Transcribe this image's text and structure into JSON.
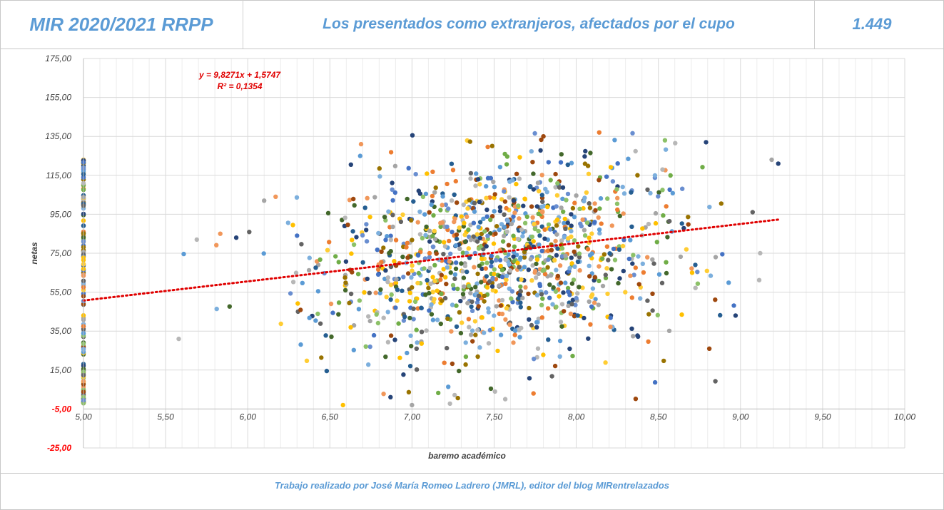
{
  "header": {
    "left_title": "MIR 2020/2021 RRPP",
    "center_title": "Los presentados como extranjeros, afectados por el cupo",
    "right_value": "1.449"
  },
  "footer": {
    "credit": "Trabajo realizado por José María Romeo Ladrero (JMRL), editor del blog MIRentrelazados"
  },
  "colors": {
    "header_text": "#5b9bd5",
    "trend": "#e00000",
    "negative_tick": "#ff0000",
    "palette": [
      "#4472c4",
      "#ed7d31",
      "#a5a5a5",
      "#ffc000",
      "#5b9bd5",
      "#70ad47",
      "#264478",
      "#9e480e",
      "#636363",
      "#997300",
      "#255e91",
      "#43682b",
      "#698ed0",
      "#f1975a",
      "#b7b7b7",
      "#ffcd33",
      "#7cafdd",
      "#8cc168"
    ]
  },
  "chart_data": {
    "type": "scatter",
    "title": "Los presentados como extranjeros, afectados por el cupo",
    "xlabel": "baremo académico",
    "ylabel": "netas",
    "xlim": [
      5.0,
      10.0
    ],
    "ylim": [
      -25.0,
      175.0
    ],
    "x_ticks": [
      "5,00",
      "5,50",
      "6,00",
      "6,50",
      "7,00",
      "7,50",
      "8,00",
      "8,50",
      "9,00",
      "9,50",
      "10,00"
    ],
    "y_ticks": [
      "175,00",
      "155,00",
      "135,00",
      "115,00",
      "95,00",
      "75,00",
      "55,00",
      "35,00",
      "15,00",
      "-5,00",
      "-25,00"
    ],
    "negative_ticks": [
      "-5,00",
      "-25,00"
    ],
    "x_axis_at": -5.0,
    "grid": true,
    "legend": "none",
    "n_points": 1449,
    "trendline": {
      "type": "linear",
      "slope": 9.8271,
      "intercept": 1.5747,
      "x_range": [
        5.0,
        9.23
      ],
      "equation_label": "y = 9,8271x + 1,5747",
      "r2_label": "R² = 0,1354"
    },
    "distribution": {
      "column_at_min_baremo": {
        "x": 5.0,
        "count": 200,
        "y_range": [
          -2,
          123
        ]
      },
      "cloud": {
        "count": 1249,
        "x_range": [
          5.58,
          9.23
        ],
        "y_range": [
          -3,
          137
        ],
        "y_center": 72,
        "y_spread": 27
      },
      "notable_points": [
        {
          "x": 5.58,
          "y": 31
        },
        {
          "x": 5.69,
          "y": 82
        },
        {
          "x": 5.93,
          "y": 83
        },
        {
          "x": 6.1,
          "y": 102
        },
        {
          "x": 6.17,
          "y": 104
        },
        {
          "x": 6.69,
          "y": 131
        },
        {
          "x": 7.8,
          "y": 135
        },
        {
          "x": 8.14,
          "y": 137
        },
        {
          "x": 8.54,
          "y": 133
        },
        {
          "x": 8.79,
          "y": 132
        },
        {
          "x": 9.19,
          "y": 123
        },
        {
          "x": 9.23,
          "y": 121
        },
        {
          "x": 9.12,
          "y": 75
        },
        {
          "x": 8.97,
          "y": 43
        },
        {
          "x": 8.81,
          "y": 26
        },
        {
          "x": 6.58,
          "y": -3
        },
        {
          "x": 7.0,
          "y": -3
        },
        {
          "x": 7.74,
          "y": 3
        }
      ]
    }
  }
}
